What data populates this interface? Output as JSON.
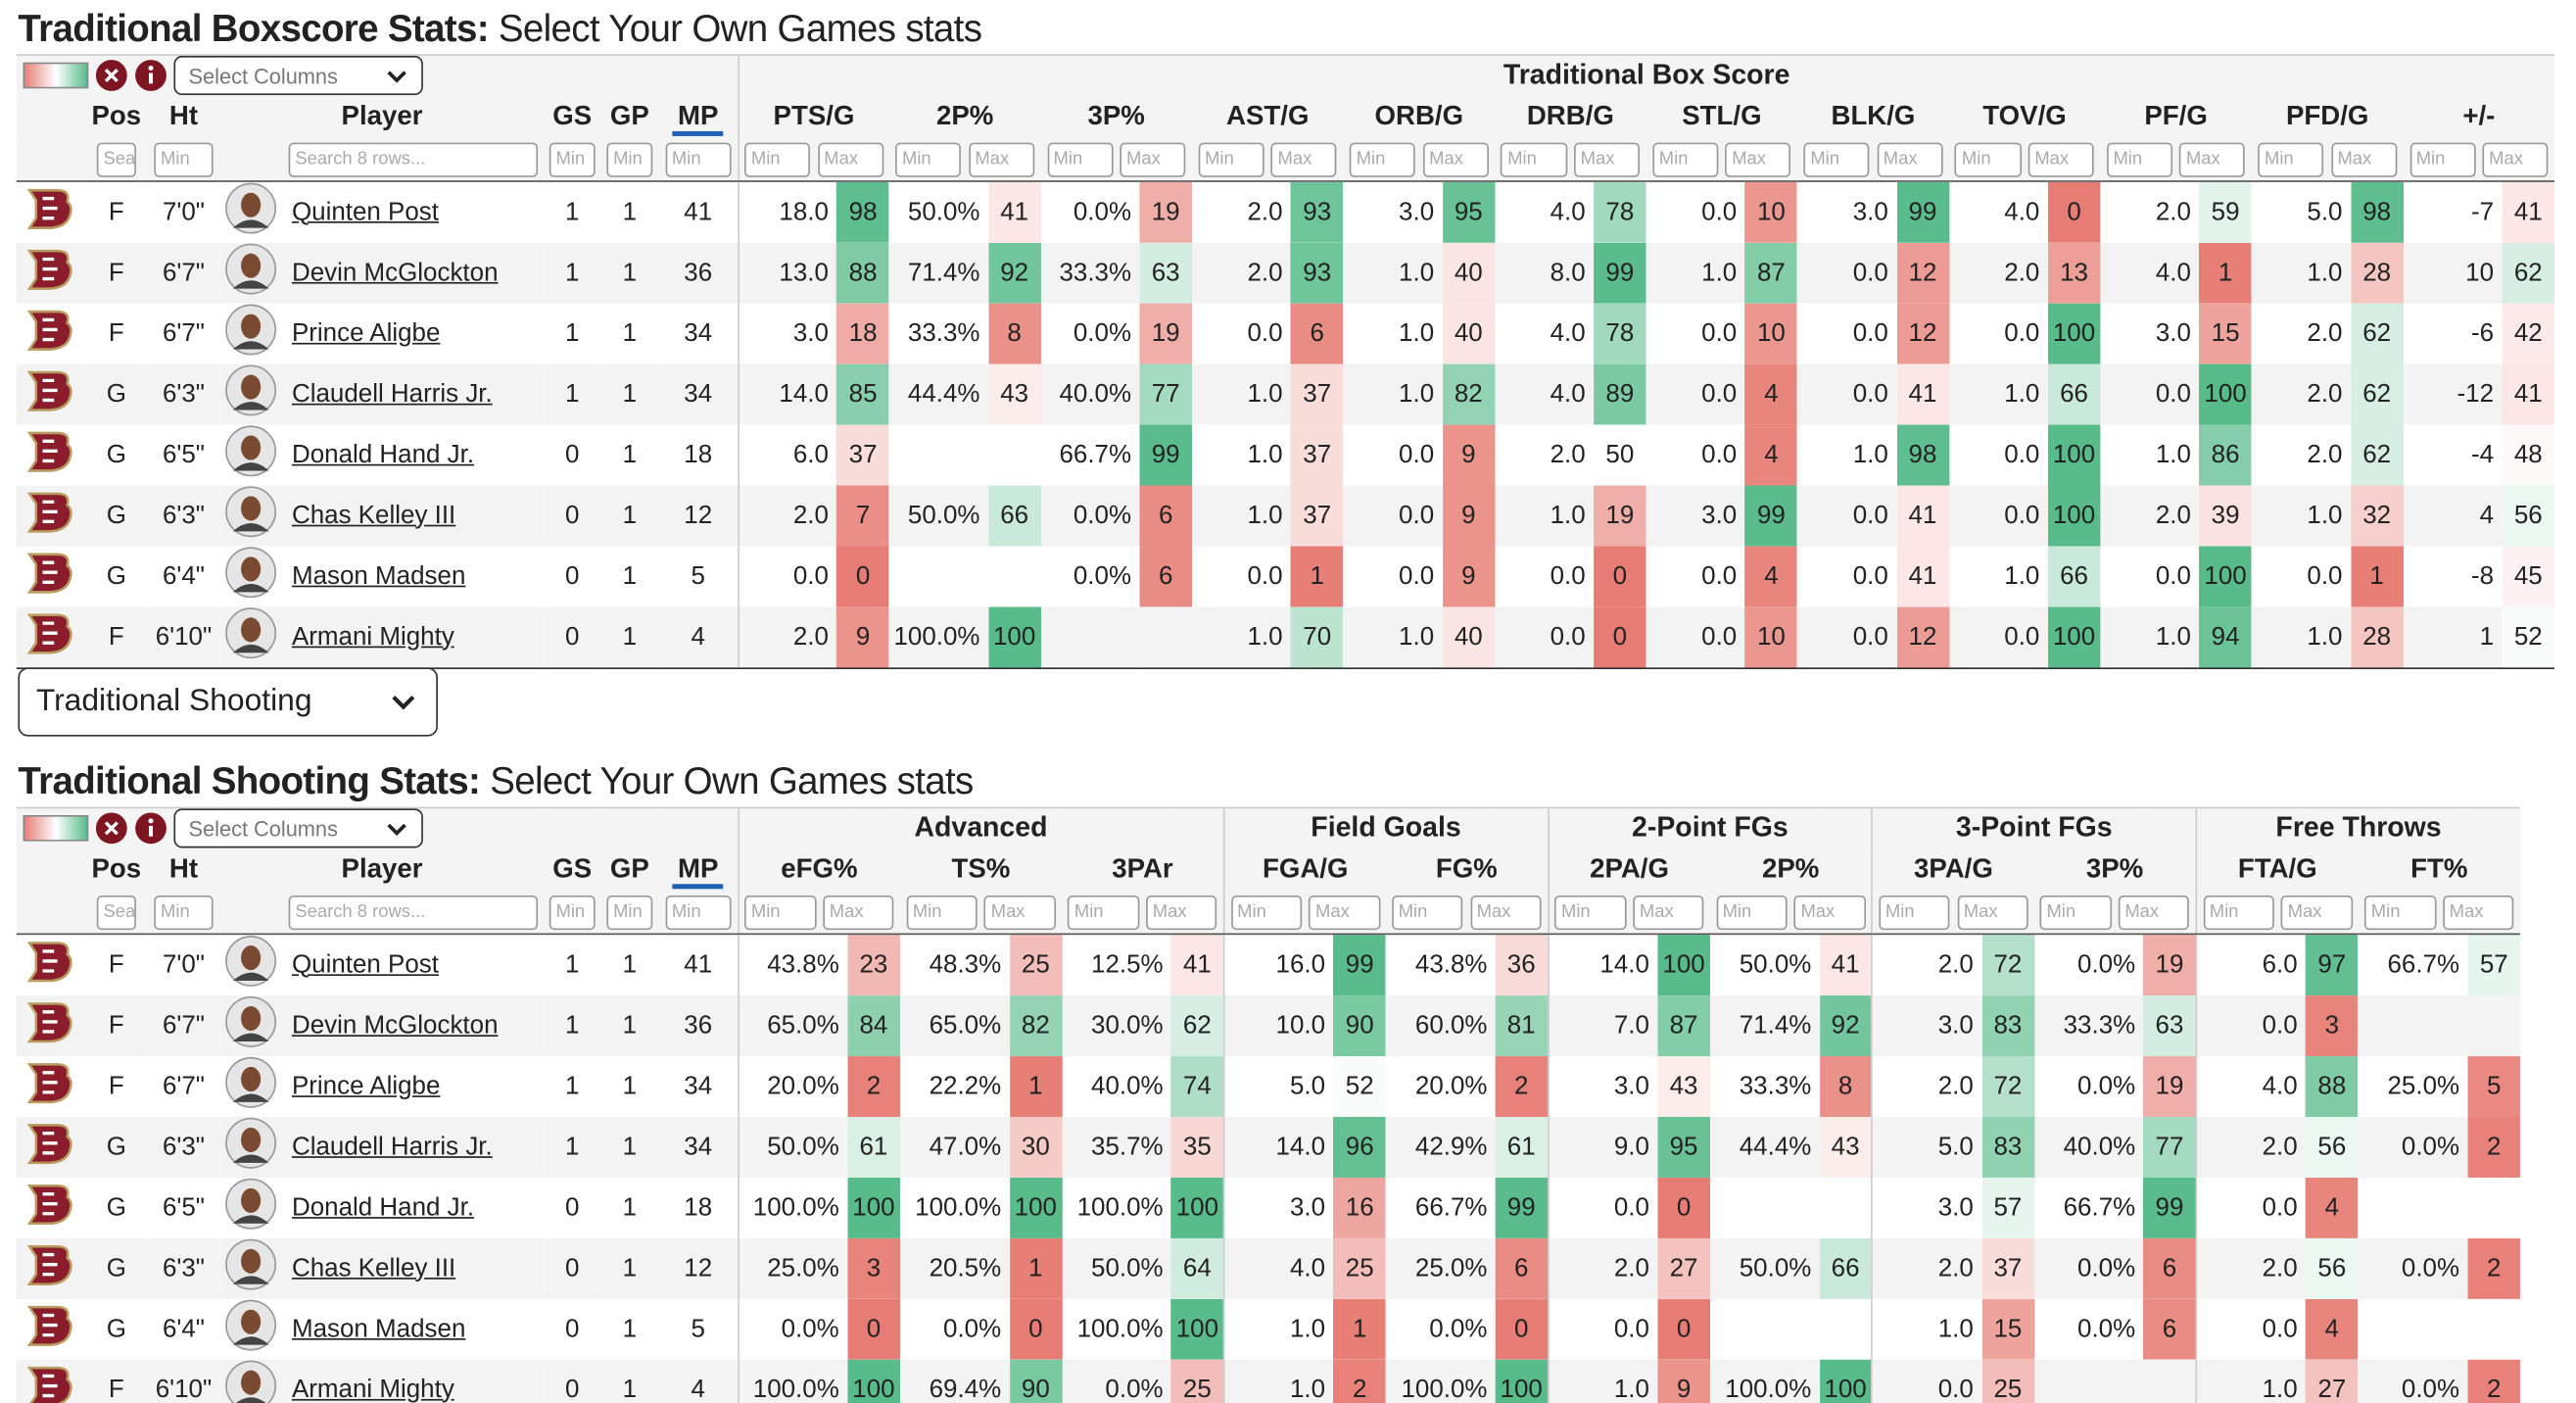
{
  "players": [
    {
      "pos": "F",
      "ht": "7'0\"",
      "name": "Quinten Post",
      "gs": 1,
      "gp": 1,
      "mp": 41
    },
    {
      "pos": "F",
      "ht": "6'7\"",
      "name": "Devin McGlockton",
      "gs": 1,
      "gp": 1,
      "mp": 36
    },
    {
      "pos": "F",
      "ht": "6'7\"",
      "name": "Prince Aligbe",
      "gs": 1,
      "gp": 1,
      "mp": 34
    },
    {
      "pos": "G",
      "ht": "6'3\"",
      "name": "Claudell Harris Jr.",
      "gs": 1,
      "gp": 1,
      "mp": 34
    },
    {
      "pos": "G",
      "ht": "6'5\"",
      "name": "Donald Hand Jr.",
      "gs": 0,
      "gp": 1,
      "mp": 18
    },
    {
      "pos": "G",
      "ht": "6'3\"",
      "name": "Chas Kelley III",
      "gs": 0,
      "gp": 1,
      "mp": 12
    },
    {
      "pos": "G",
      "ht": "6'4\"",
      "name": "Mason Madsen",
      "gs": 0,
      "gp": 1,
      "mp": 5
    },
    {
      "pos": "F",
      "ht": "6'10\"",
      "name": "Armani Mighty",
      "gs": 0,
      "gp": 1,
      "mp": 4
    }
  ],
  "base_columns": {
    "pos": "Pos",
    "ht": "Ht",
    "player": "Player",
    "gs": "GS",
    "gp": "GP",
    "mp": "MP"
  },
  "filters": {
    "search_short": "Sea",
    "min": "Min",
    "max": "Max",
    "search": "Search 8 rows..."
  },
  "view_select": "Traditional Shooting",
  "boxscore": {
    "title": "Traditional Boxscore Stats:",
    "subtitle": "Select Your Own Games stats",
    "select_columns": "Select Columns",
    "groups": [
      {
        "name": "Traditional Box Score",
        "columns": [
          "PTS/G",
          "2P%",
          "3P%",
          "AST/G",
          "ORB/G",
          "DRB/G",
          "STL/G",
          "BLK/G",
          "TOV/G",
          "PF/G",
          "PFD/G",
          "+/-"
        ]
      }
    ],
    "rows": [
      [
        [
          "18.0",
          98
        ],
        [
          "50.0%",
          41
        ],
        [
          "0.0%",
          19
        ],
        [
          "2.0",
          93
        ],
        [
          "3.0",
          95
        ],
        [
          "4.0",
          78
        ],
        [
          "0.0",
          10
        ],
        [
          "3.0",
          99
        ],
        [
          "4.0",
          0
        ],
        [
          "2.0",
          59
        ],
        [
          "5.0",
          98
        ],
        [
          "-7",
          41
        ]
      ],
      [
        [
          "13.0",
          88
        ],
        [
          "71.4%",
          92
        ],
        [
          "33.3%",
          63
        ],
        [
          "2.0",
          93
        ],
        [
          "1.0",
          40
        ],
        [
          "8.0",
          99
        ],
        [
          "1.0",
          87
        ],
        [
          "0.0",
          12
        ],
        [
          "2.0",
          13
        ],
        [
          "4.0",
          1
        ],
        [
          "1.0",
          28
        ],
        [
          "10",
          62
        ]
      ],
      [
        [
          "3.0",
          18
        ],
        [
          "33.3%",
          8
        ],
        [
          "0.0%",
          19
        ],
        [
          "0.0",
          6
        ],
        [
          "1.0",
          40
        ],
        [
          "4.0",
          78
        ],
        [
          "0.0",
          10
        ],
        [
          "0.0",
          12
        ],
        [
          "0.0",
          100
        ],
        [
          "3.0",
          15
        ],
        [
          "2.0",
          62
        ],
        [
          "-6",
          42
        ]
      ],
      [
        [
          "14.0",
          85
        ],
        [
          "44.4%",
          43
        ],
        [
          "40.0%",
          77
        ],
        [
          "1.0",
          37
        ],
        [
          "1.0",
          82
        ],
        [
          "4.0",
          89
        ],
        [
          "0.0",
          4
        ],
        [
          "0.0",
          41
        ],
        [
          "1.0",
          66
        ],
        [
          "0.0",
          100
        ],
        [
          "2.0",
          62
        ],
        [
          "-12",
          41
        ]
      ],
      [
        [
          "6.0",
          37
        ],
        [
          null,
          null
        ],
        [
          "66.7%",
          99
        ],
        [
          "1.0",
          37
        ],
        [
          "0.0",
          9
        ],
        [
          "2.0",
          50
        ],
        [
          "0.0",
          4
        ],
        [
          "1.0",
          98
        ],
        [
          "0.0",
          100
        ],
        [
          "1.0",
          86
        ],
        [
          "2.0",
          62
        ],
        [
          "-4",
          48
        ]
      ],
      [
        [
          "2.0",
          7
        ],
        [
          "50.0%",
          66
        ],
        [
          "0.0%",
          6
        ],
        [
          "1.0",
          37
        ],
        [
          "0.0",
          9
        ],
        [
          "1.0",
          19
        ],
        [
          "3.0",
          99
        ],
        [
          "0.0",
          41
        ],
        [
          "0.0",
          100
        ],
        [
          "2.0",
          39
        ],
        [
          "1.0",
          32
        ],
        [
          "4",
          56
        ]
      ],
      [
        [
          "0.0",
          0
        ],
        [
          null,
          null
        ],
        [
          "0.0%",
          6
        ],
        [
          "0.0",
          1
        ],
        [
          "0.0",
          9
        ],
        [
          "0.0",
          0
        ],
        [
          "0.0",
          4
        ],
        [
          "0.0",
          41
        ],
        [
          "1.0",
          66
        ],
        [
          "0.0",
          100
        ],
        [
          "0.0",
          1
        ],
        [
          "-8",
          45
        ]
      ],
      [
        [
          "2.0",
          9
        ],
        [
          "100.0%",
          100
        ],
        [
          null,
          null
        ],
        [
          "1.0",
          70
        ],
        [
          "1.0",
          40
        ],
        [
          "0.0",
          0
        ],
        [
          "0.0",
          10
        ],
        [
          "0.0",
          12
        ],
        [
          "0.0",
          100
        ],
        [
          "1.0",
          94
        ],
        [
          "1.0",
          28
        ],
        [
          "1",
          52
        ]
      ]
    ]
  },
  "shooting": {
    "title": "Traditional Shooting Stats:",
    "subtitle": "Select Your Own Games stats",
    "select_columns": "Select Columns",
    "groups": [
      {
        "name": "Advanced",
        "columns": [
          "eFG%",
          "TS%",
          "3PAr"
        ]
      },
      {
        "name": "Field Goals",
        "columns": [
          "FGA/G",
          "FG%"
        ]
      },
      {
        "name": "2-Point FGs",
        "columns": [
          "2PA/G",
          "2P%"
        ]
      },
      {
        "name": "3-Point FGs",
        "columns": [
          "3PA/G",
          "3P%"
        ]
      },
      {
        "name": "Free Throws",
        "columns": [
          "FTA/G",
          "FT%"
        ]
      }
    ],
    "rows": [
      [
        [
          "43.8%",
          23
        ],
        [
          "48.3%",
          25
        ],
        [
          "12.5%",
          41
        ],
        [
          "16.0",
          99
        ],
        [
          "43.8%",
          36
        ],
        [
          "14.0",
          100
        ],
        [
          "50.0%",
          41
        ],
        [
          "2.0",
          72
        ],
        [
          "0.0%",
          19
        ],
        [
          "6.0",
          97
        ],
        [
          "66.7%",
          57
        ]
      ],
      [
        [
          "65.0%",
          84
        ],
        [
          "65.0%",
          82
        ],
        [
          "30.0%",
          62
        ],
        [
          "10.0",
          90
        ],
        [
          "60.0%",
          81
        ],
        [
          "7.0",
          87
        ],
        [
          "71.4%",
          92
        ],
        [
          "3.0",
          83
        ],
        [
          "33.3%",
          63
        ],
        [
          "0.0",
          3
        ],
        [
          null,
          null
        ]
      ],
      [
        [
          "20.0%",
          2
        ],
        [
          "22.2%",
          1
        ],
        [
          "40.0%",
          74
        ],
        [
          "5.0",
          52
        ],
        [
          "20.0%",
          2
        ],
        [
          "3.0",
          43
        ],
        [
          "33.3%",
          8
        ],
        [
          "2.0",
          72
        ],
        [
          "0.0%",
          19
        ],
        [
          "4.0",
          88
        ],
        [
          "25.0%",
          5
        ]
      ],
      [
        [
          "50.0%",
          61
        ],
        [
          "47.0%",
          30
        ],
        [
          "35.7%",
          35
        ],
        [
          "14.0",
          96
        ],
        [
          "42.9%",
          61
        ],
        [
          "9.0",
          95
        ],
        [
          "44.4%",
          43
        ],
        [
          "5.0",
          83
        ],
        [
          "40.0%",
          77
        ],
        [
          "2.0",
          56
        ],
        [
          "0.0%",
          2
        ]
      ],
      [
        [
          "100.0%",
          100
        ],
        [
          "100.0%",
          100
        ],
        [
          "100.0%",
          100
        ],
        [
          "3.0",
          16
        ],
        [
          "66.7%",
          99
        ],
        [
          "0.0",
          0
        ],
        [
          null,
          null
        ],
        [
          "3.0",
          57
        ],
        [
          "66.7%",
          99
        ],
        [
          "0.0",
          4
        ],
        [
          null,
          null
        ]
      ],
      [
        [
          "25.0%",
          3
        ],
        [
          "20.5%",
          1
        ],
        [
          "50.0%",
          64
        ],
        [
          "4.0",
          25
        ],
        [
          "25.0%",
          6
        ],
        [
          "2.0",
          27
        ],
        [
          "50.0%",
          66
        ],
        [
          "2.0",
          37
        ],
        [
          "0.0%",
          6
        ],
        [
          "2.0",
          56
        ],
        [
          "0.0%",
          2
        ]
      ],
      [
        [
          "0.0%",
          0
        ],
        [
          "0.0%",
          0
        ],
        [
          "100.0%",
          100
        ],
        [
          "1.0",
          1
        ],
        [
          "0.0%",
          0
        ],
        [
          "0.0",
          0
        ],
        [
          null,
          null
        ],
        [
          "1.0",
          15
        ],
        [
          "0.0%",
          6
        ],
        [
          "0.0",
          4
        ],
        [
          null,
          null
        ]
      ],
      [
        [
          "100.0%",
          100
        ],
        [
          "69.4%",
          90
        ],
        [
          "0.0%",
          25
        ],
        [
          "1.0",
          2
        ],
        [
          "100.0%",
          100
        ],
        [
          "1.0",
          9
        ],
        [
          "100.0%",
          100
        ],
        [
          "0.0",
          25
        ],
        [
          null,
          null
        ],
        [
          "1.0",
          27
        ],
        [
          "0.0%",
          2
        ]
      ]
    ]
  }
}
